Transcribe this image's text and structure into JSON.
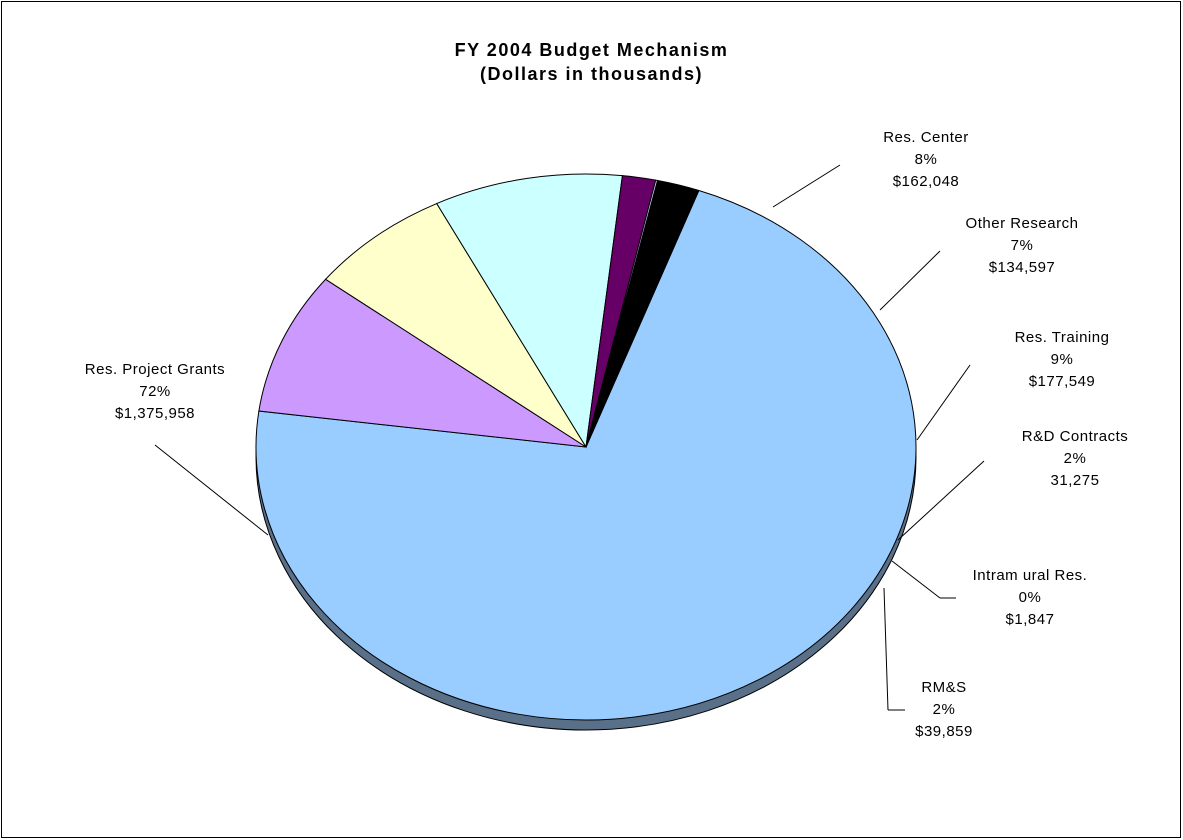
{
  "chart_data": {
    "type": "pie",
    "title": "FY  2004 Budget Mechanism",
    "subtitle": "(Dollars in thousands)",
    "slices": [
      {
        "name": "Res. Project Grants",
        "percent": "72%",
        "amount": "$1,375,958",
        "value": 1375958,
        "color": "#99ccff"
      },
      {
        "name": "Res. Center",
        "percent": "8%",
        "amount": "$162,048",
        "value": 162048,
        "color": "#cc99ff"
      },
      {
        "name": "Other Research",
        "percent": "7%",
        "amount": "$134,597",
        "value": 134597,
        "color": "#ffffcc"
      },
      {
        "name": "Res. Training",
        "percent": "9%",
        "amount": "$177,549",
        "value": 177549,
        "color": "#ccffff"
      },
      {
        "name": "R&D Contracts",
        "percent": "2%",
        "amount": "31,275",
        "value": 31275,
        "color": "#660066"
      },
      {
        "name": "Intram ural Res.",
        "percent": "0%",
        "amount": "$1,847",
        "value": 1847,
        "color": "#ccccff"
      },
      {
        "name": "RM&S",
        "percent": "2%",
        "amount": "$39,859",
        "value": 39859,
        "color": "#000000"
      }
    ]
  }
}
